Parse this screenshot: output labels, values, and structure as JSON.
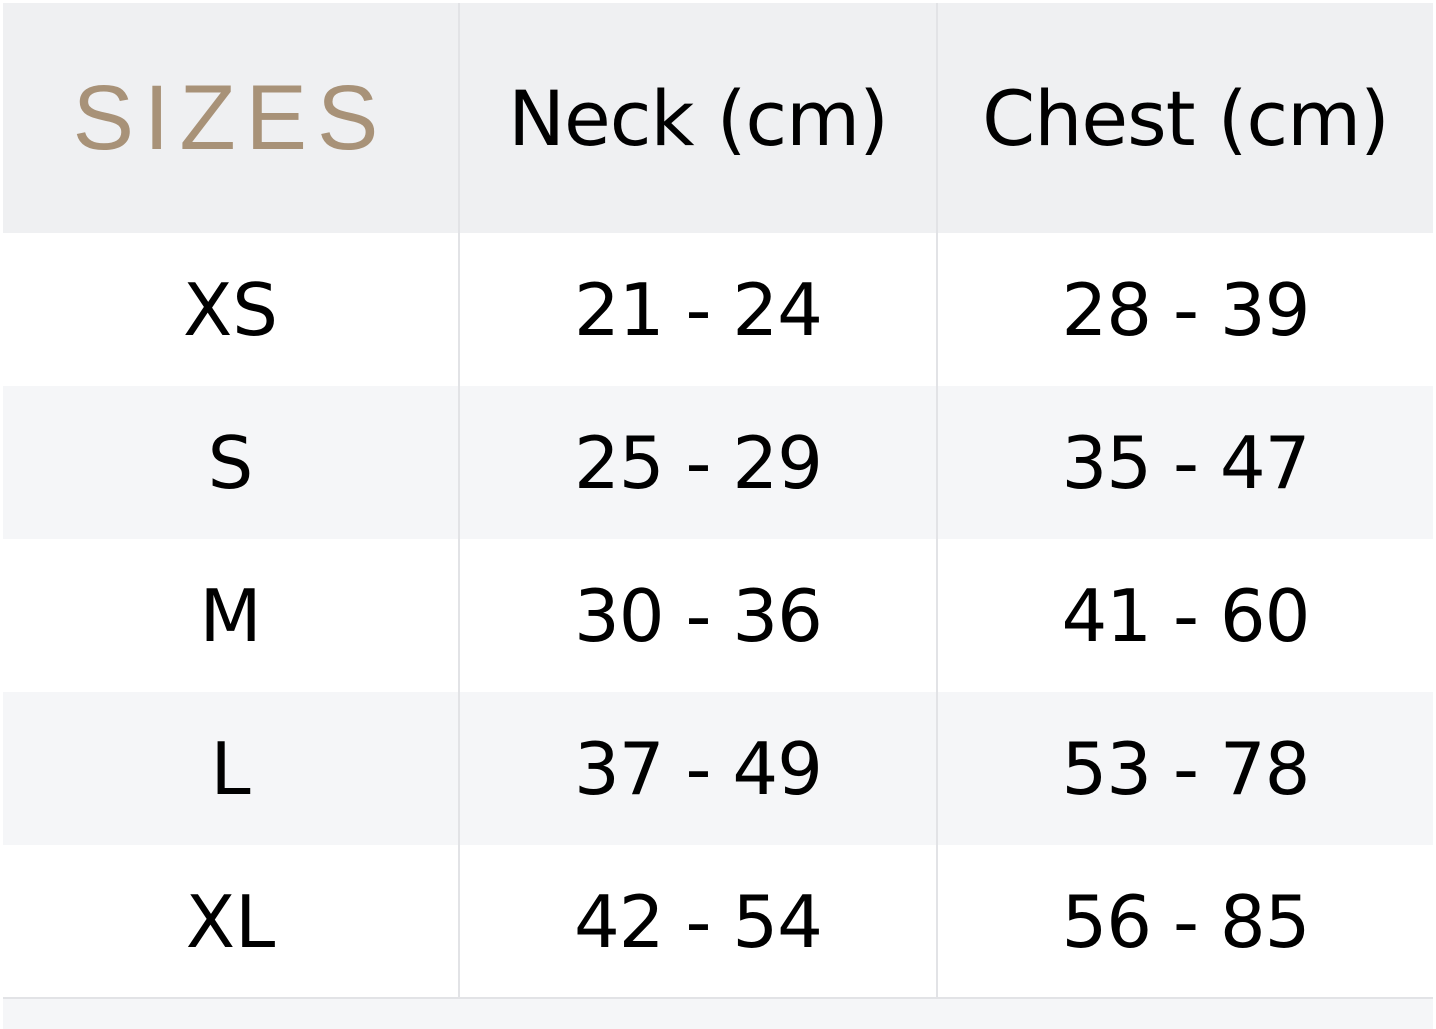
{
  "table": {
    "headers": [
      "SIZES",
      "Neck (cm)",
      "Chest (cm)"
    ],
    "rows": [
      {
        "size": "XS",
        "neck": "21 - 24",
        "chest": "28 - 39"
      },
      {
        "size": "S",
        "neck": "25 - 29",
        "chest": "35 - 47"
      },
      {
        "size": "M",
        "neck": "30 - 36",
        "chest": "41 - 60"
      },
      {
        "size": "L",
        "neck": "37 - 49",
        "chest": "53 - 78"
      },
      {
        "size": "XL",
        "neck": "42 - 54",
        "chest": "56 - 85"
      }
    ]
  },
  "colors": {
    "accent": "#a89278",
    "header_bg": "#eff0f2",
    "alt_row_bg": "#f5f6f8"
  }
}
